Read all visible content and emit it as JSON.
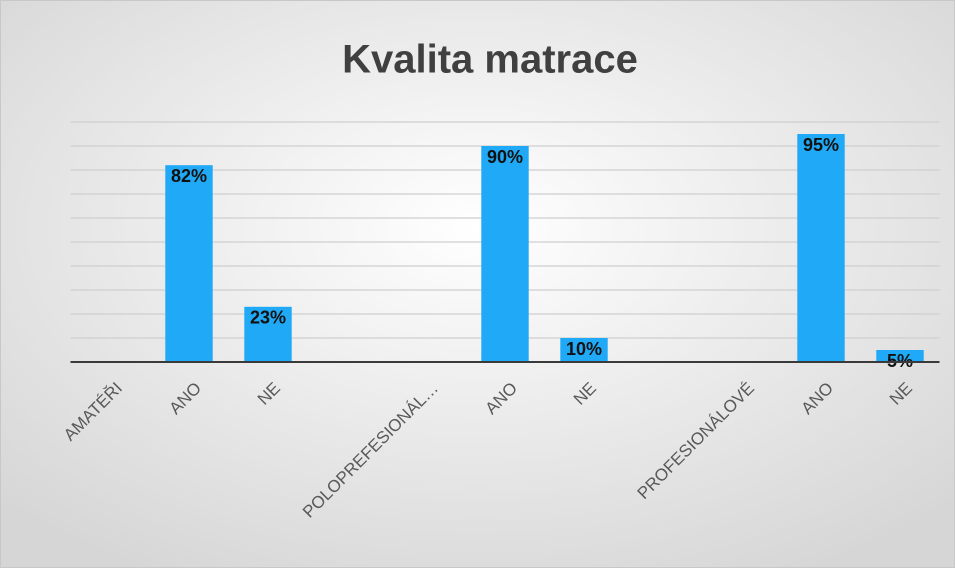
{
  "chart_data": {
    "type": "bar",
    "title": "Kvalita matrace",
    "categories": [
      "AMATÉŘI",
      "ANO",
      "NE",
      null,
      "POLOPREFESIONÁL…",
      "ANO",
      "NE",
      null,
      "PROFESIONÁLOVÉ",
      "ANO",
      "NE"
    ],
    "values": [
      null,
      82,
      23,
      null,
      null,
      90,
      10,
      null,
      null,
      95,
      5
    ],
    "value_labels": [
      null,
      "82%",
      "23%",
      null,
      null,
      "90%",
      "10%",
      null,
      null,
      "95%",
      "5%"
    ],
    "color": "#1fa9f6",
    "ylim": [
      0,
      100
    ],
    "yticks": [
      0,
      10,
      20,
      30,
      40,
      50,
      60,
      70,
      80,
      90,
      100
    ],
    "grid": true
  }
}
